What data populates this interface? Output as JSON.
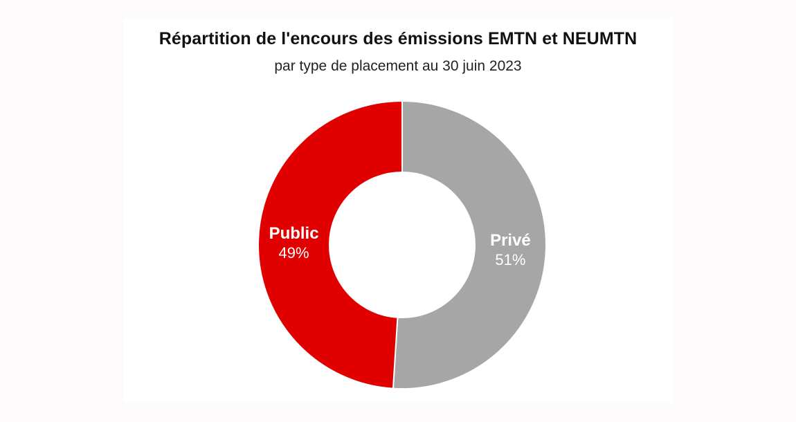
{
  "chart_data": {
    "type": "pie",
    "title": "Répartition de l'encours des émissions EMTN et NEUMTN",
    "subtitle": "par type de placement au 30 juin 2023",
    "donut": true,
    "legend": "none",
    "slices": [
      {
        "label": "Privé",
        "value": 51,
        "display": "51%",
        "color": "#a6a6a6"
      },
      {
        "label": "Public",
        "value": 49,
        "display": "49%",
        "color": "#e10000"
      }
    ]
  }
}
